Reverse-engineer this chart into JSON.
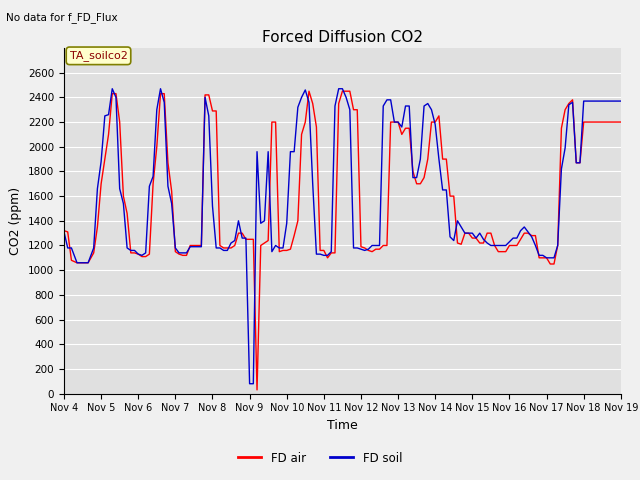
{
  "title": "Forced Diffusion CO2",
  "xlabel": "Time",
  "ylabel": "CO2 (ppm)",
  "note": "No data for f_FD_Flux",
  "legend_label": "TA_soilco2",
  "ylim": [
    0,
    2800
  ],
  "yticks": [
    0,
    200,
    400,
    600,
    800,
    1000,
    1200,
    1400,
    1600,
    1800,
    2000,
    2200,
    2400,
    2600
  ],
  "fig_bg_color": "#f0f0f0",
  "plot_bg_color": "#e0e0e0",
  "fd_air_color": "#ff0000",
  "fd_soil_color": "#0000cc",
  "line_width": 1.0,
  "fd_air_label": "FD air",
  "fd_soil_label": "FD soil",
  "fd_air_x": [
    4.0,
    4.1,
    4.2,
    4.35,
    4.5,
    4.65,
    4.8,
    4.9,
    5.0,
    5.1,
    5.2,
    5.3,
    5.4,
    5.5,
    5.6,
    5.7,
    5.8,
    5.9,
    6.0,
    6.1,
    6.2,
    6.3,
    6.4,
    6.5,
    6.6,
    6.7,
    6.8,
    6.9,
    7.0,
    7.1,
    7.2,
    7.3,
    7.4,
    7.5,
    7.6,
    7.7,
    7.8,
    7.9,
    8.0,
    8.1,
    8.2,
    8.3,
    8.4,
    8.5,
    8.6,
    8.7,
    8.8,
    8.9,
    9.0,
    9.1,
    9.2,
    9.3,
    9.4,
    9.5,
    9.6,
    9.7,
    9.8,
    9.9,
    10.0,
    10.1,
    10.2,
    10.3,
    10.4,
    10.5,
    10.6,
    10.7,
    10.8,
    10.9,
    11.0,
    11.1,
    11.2,
    11.3,
    11.4,
    11.5,
    11.6,
    11.7,
    11.8,
    11.9,
    12.0,
    12.1,
    12.2,
    12.3,
    12.4,
    12.5,
    12.6,
    12.7,
    12.8,
    12.9,
    13.0,
    13.1,
    13.2,
    13.3,
    13.4,
    13.5,
    13.6,
    13.7,
    13.8,
    13.9,
    14.0,
    14.1,
    14.2,
    14.3,
    14.4,
    14.5,
    14.6,
    14.7,
    14.8,
    14.9,
    15.0,
    15.1,
    15.2,
    15.3,
    15.4,
    15.5,
    15.6,
    15.7,
    15.8,
    15.9,
    16.0,
    16.1,
    16.2,
    16.3,
    16.4,
    16.5,
    16.6,
    16.7,
    16.8,
    16.9,
    17.0,
    17.1,
    17.2,
    17.3,
    17.4,
    17.5,
    17.6,
    17.7,
    17.8,
    17.9,
    18.0,
    18.1,
    18.2,
    18.3,
    18.4,
    18.5,
    18.6,
    18.7,
    18.8,
    18.9,
    19.0
  ],
  "fd_air_y": [
    1320,
    1310,
    1080,
    1060,
    1060,
    1060,
    1140,
    1350,
    1700,
    1900,
    2100,
    2430,
    2430,
    2200,
    1600,
    1460,
    1140,
    1140,
    1130,
    1110,
    1110,
    1130,
    1700,
    2000,
    2430,
    2430,
    1870,
    1640,
    1150,
    1130,
    1120,
    1120,
    1200,
    1200,
    1200,
    1200,
    2420,
    2420,
    2290,
    2290,
    1200,
    1180,
    1180,
    1180,
    1200,
    1300,
    1300,
    1250,
    1250,
    1250,
    30,
    1200,
    1220,
    1240,
    2200,
    2200,
    1150,
    1160,
    1160,
    1170,
    1280,
    1400,
    2100,
    2200,
    2450,
    2350,
    2160,
    1160,
    1160,
    1100,
    1140,
    1140,
    2350,
    2450,
    2450,
    2450,
    2300,
    2300,
    1190,
    1180,
    1160,
    1150,
    1170,
    1170,
    1200,
    1200,
    2200,
    2200,
    2200,
    2100,
    2150,
    2150,
    1800,
    1700,
    1700,
    1750,
    1900,
    2200,
    2200,
    2250,
    1900,
    1900,
    1600,
    1600,
    1220,
    1210,
    1300,
    1300,
    1260,
    1260,
    1220,
    1220,
    1300,
    1300,
    1200,
    1150,
    1150,
    1150,
    1200,
    1200,
    1200,
    1250,
    1300,
    1300,
    1280,
    1280,
    1100,
    1100,
    1100,
    1050,
    1050,
    1200,
    2150,
    2300,
    2350,
    2380,
    1870,
    1870,
    2200,
    2200,
    2200,
    2200,
    2200,
    2200,
    2200,
    2200,
    2200,
    2200,
    2200
  ],
  "fd_soil_x": [
    4.0,
    4.1,
    4.2,
    4.35,
    4.5,
    4.65,
    4.8,
    4.9,
    5.0,
    5.1,
    5.2,
    5.3,
    5.4,
    5.5,
    5.6,
    5.7,
    5.8,
    5.9,
    6.0,
    6.1,
    6.2,
    6.3,
    6.4,
    6.5,
    6.6,
    6.7,
    6.8,
    6.9,
    7.0,
    7.1,
    7.2,
    7.3,
    7.4,
    7.5,
    7.6,
    7.7,
    7.8,
    7.9,
    8.0,
    8.1,
    8.2,
    8.3,
    8.4,
    8.5,
    8.6,
    8.7,
    8.8,
    8.9,
    9.0,
    9.05,
    9.1,
    9.2,
    9.3,
    9.4,
    9.5,
    9.6,
    9.7,
    9.8,
    9.9,
    10.0,
    10.1,
    10.2,
    10.3,
    10.4,
    10.5,
    10.6,
    10.7,
    10.8,
    10.9,
    11.0,
    11.1,
    11.2,
    11.3,
    11.4,
    11.5,
    11.6,
    11.7,
    11.8,
    11.9,
    12.0,
    12.1,
    12.2,
    12.3,
    12.4,
    12.5,
    12.6,
    12.7,
    12.8,
    12.9,
    13.0,
    13.1,
    13.2,
    13.3,
    13.4,
    13.5,
    13.6,
    13.7,
    13.8,
    13.9,
    14.0,
    14.1,
    14.2,
    14.3,
    14.4,
    14.5,
    14.6,
    14.7,
    14.8,
    14.9,
    15.0,
    15.1,
    15.2,
    15.3,
    15.4,
    15.5,
    15.6,
    15.7,
    15.8,
    15.9,
    16.0,
    16.1,
    16.2,
    16.3,
    16.4,
    16.5,
    16.6,
    16.7,
    16.8,
    16.9,
    17.0,
    17.1,
    17.2,
    17.3,
    17.4,
    17.5,
    17.6,
    17.7,
    17.8,
    17.9,
    18.0,
    18.1,
    18.2,
    18.3,
    18.4,
    18.5,
    18.6,
    18.7,
    18.8,
    18.9,
    19.0
  ],
  "fd_soil_y": [
    1310,
    1180,
    1180,
    1060,
    1060,
    1060,
    1180,
    1660,
    1880,
    2250,
    2260,
    2470,
    2400,
    1660,
    1540,
    1180,
    1160,
    1160,
    1130,
    1120,
    1140,
    1680,
    1760,
    2300,
    2470,
    2360,
    1680,
    1540,
    1180,
    1140,
    1140,
    1140,
    1190,
    1190,
    1190,
    1190,
    2400,
    2250,
    1520,
    1180,
    1180,
    1160,
    1160,
    1220,
    1240,
    1400,
    1260,
    1260,
    80,
    80,
    80,
    1960,
    1380,
    1400,
    1960,
    1150,
    1200,
    1180,
    1180,
    1380,
    1960,
    1960,
    2320,
    2400,
    2460,
    2360,
    1700,
    1130,
    1130,
    1120,
    1120,
    1150,
    2330,
    2470,
    2470,
    2400,
    2300,
    1180,
    1180,
    1170,
    1160,
    1170,
    1200,
    1200,
    1200,
    2330,
    2380,
    2380,
    2200,
    2200,
    2160,
    2330,
    2330,
    1750,
    1750,
    1900,
    2330,
    2350,
    2300,
    2180,
    1900,
    1650,
    1650,
    1270,
    1240,
    1400,
    1350,
    1300,
    1300,
    1300,
    1260,
    1300,
    1250,
    1220,
    1200,
    1200,
    1200,
    1200,
    1200,
    1230,
    1260,
    1260,
    1320,
    1350,
    1310,
    1270,
    1200,
    1120,
    1120,
    1100,
    1100,
    1100,
    1200,
    1820,
    1990,
    2340,
    2360,
    1870,
    1870,
    2370,
    2370,
    2370,
    2370,
    2370,
    2370,
    2370,
    2370,
    2370,
    2370,
    2370
  ]
}
